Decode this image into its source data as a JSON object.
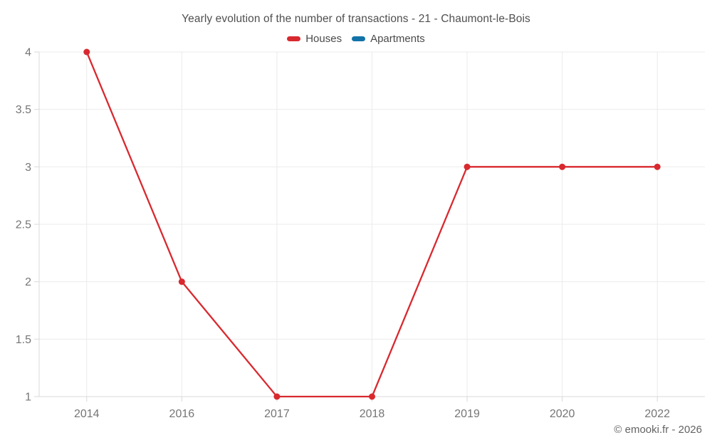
{
  "chart_data": {
    "type": "line",
    "title": "Yearly evolution of the number of transactions - 21 - Chaumont-le-Bois",
    "categories": [
      "2014",
      "2016",
      "2017",
      "2018",
      "2019",
      "2020",
      "2022"
    ],
    "series": [
      {
        "name": "Houses",
        "color": "#d8292f",
        "values": [
          4,
          2,
          1,
          1,
          3,
          3,
          3
        ]
      },
      {
        "name": "Apartments",
        "color": "#1373a8",
        "values": []
      }
    ],
    "xlabel": "",
    "ylabel": "",
    "ylim": [
      1,
      4
    ],
    "ytick_step": 0.5,
    "ytick_labels": [
      "1",
      "1.5",
      "2",
      "2.5",
      "3",
      "3.5",
      "4"
    ],
    "grid": true,
    "legend_position": "top",
    "marker": "circle"
  },
  "footer": {
    "copyright": "© emooki.fr - 2026"
  },
  "style": {
    "grid_color": "#ebebeb",
    "axis_color": "#d9d9d9",
    "tick_label_color": "#757575",
    "title_color": "#4f4f4f",
    "background": "#ffffff",
    "line_width": 2.3,
    "marker_radius": 4.5
  }
}
